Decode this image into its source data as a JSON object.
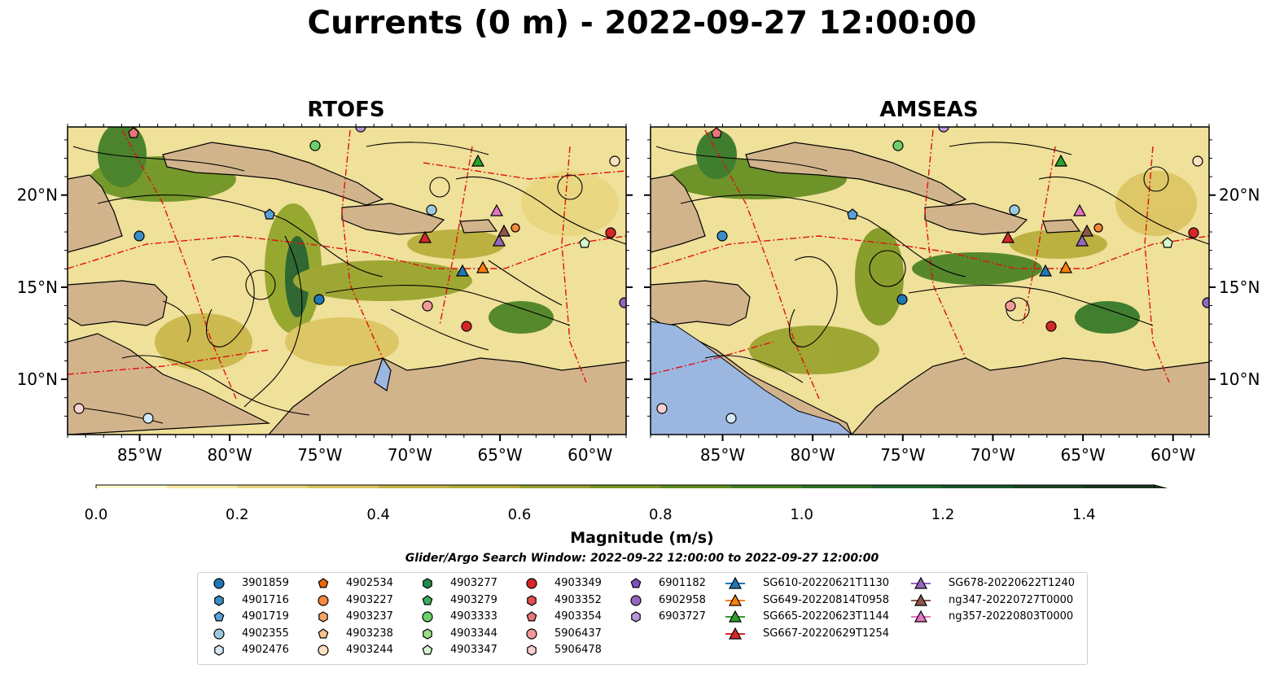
{
  "title": "Currents (0 m) - 2022-09-27 12:00:00",
  "panels": [
    {
      "title": "RTOFS"
    },
    {
      "title": "AMSEAS"
    }
  ],
  "lon_ticks": [
    "85°W",
    "80°W",
    "75°W",
    "70°W",
    "65°W",
    "60°W"
  ],
  "lat_ticks": [
    "20°N",
    "15°N",
    "10°N"
  ],
  "colorbar": {
    "label": "Magnitude (m/s)",
    "ticks": [
      "0.0",
      "0.2",
      "0.4",
      "0.6",
      "0.8",
      "1.0",
      "1.2",
      "1.4"
    ],
    "min": 0.0,
    "max": 1.5,
    "colors": [
      "#fefbcd",
      "#f6e9a6",
      "#e8d67f",
      "#dcc460",
      "#c9b548",
      "#b5ad38",
      "#97a12a",
      "#7d9621",
      "#5f8b1d",
      "#447f1f",
      "#2d7423",
      "#1d6629",
      "#17552b",
      "#1a4425",
      "#1d341d"
    ]
  },
  "search_window": "Glider/Argo Search Window: 2022-09-22 12:00:00 to 2022-09-27 12:00:00",
  "legend": [
    {
      "label": "3901859",
      "shape": "circle",
      "color": "#1f77b4"
    },
    {
      "label": "4901716",
      "shape": "hexagon",
      "color": "#3a8cc4"
    },
    {
      "label": "4901719",
      "shape": "pentagon",
      "color": "#5aa0d6"
    },
    {
      "label": "4902355",
      "shape": "circle",
      "color": "#9ecae1"
    },
    {
      "label": "4902476",
      "shape": "hexagon",
      "color": "#d4e8f7"
    },
    {
      "label": "4902534",
      "shape": "pentagon",
      "color": "#e6660a"
    },
    {
      "label": "4903227",
      "shape": "circle",
      "color": "#f4893a"
    },
    {
      "label": "4903237",
      "shape": "hexagon",
      "color": "#f6a563"
    },
    {
      "label": "4903238",
      "shape": "pentagon",
      "color": "#fbc18f"
    },
    {
      "label": "4903244",
      "shape": "circle",
      "color": "#fde0c0"
    },
    {
      "label": "4903277",
      "shape": "hexagon",
      "color": "#238b45"
    },
    {
      "label": "4903279",
      "shape": "pentagon",
      "color": "#41ab5d"
    },
    {
      "label": "4903333",
      "shape": "circle",
      "color": "#6ccf6c"
    },
    {
      "label": "4903344",
      "shape": "hexagon",
      "color": "#98df8a"
    },
    {
      "label": "4903347",
      "shape": "pentagon",
      "color": "#d4f7cc"
    },
    {
      "label": "4903349",
      "shape": "circle",
      "color": "#d62728"
    },
    {
      "label": "4903352",
      "shape": "hexagon",
      "color": "#e14f4f"
    },
    {
      "label": "4903354",
      "shape": "pentagon",
      "color": "#e8767a"
    },
    {
      "label": "5906437",
      "shape": "circle",
      "color": "#f29a9a"
    },
    {
      "label": "5906478",
      "shape": "hexagon",
      "color": "#fbd0d0"
    },
    {
      "label": "6901182",
      "shape": "pentagon",
      "color": "#7f4fbf"
    },
    {
      "label": "6902958",
      "shape": "circle",
      "color": "#9467bd"
    },
    {
      "label": "6903727",
      "shape": "hexagon",
      "color": "#b797db"
    },
    {
      "label": "SG610-20220621T1130",
      "shape": "triangle",
      "color": "#1f77b4"
    },
    {
      "label": "SG649-20220814T0958",
      "shape": "triangle",
      "color": "#ff7f0e"
    },
    {
      "label": "SG665-20220623T1144",
      "shape": "triangle",
      "color": "#2ca02c"
    },
    {
      "label": "SG667-20220629T1254",
      "shape": "triangle",
      "color": "#d62728"
    },
    {
      "label": "SG678-20220622T1240",
      "shape": "triangle",
      "color": "#9467bd"
    },
    {
      "label": "ng347-20220727T0000",
      "shape": "triangle",
      "color": "#8c564b"
    },
    {
      "label": "ng357-20220803T0000",
      "shape": "triangle",
      "color": "#e377c2"
    }
  ],
  "map_extent": {
    "lon_min": -89,
    "lon_max": -58,
    "lat_min": 7,
    "lat_max": 23.7
  }
}
